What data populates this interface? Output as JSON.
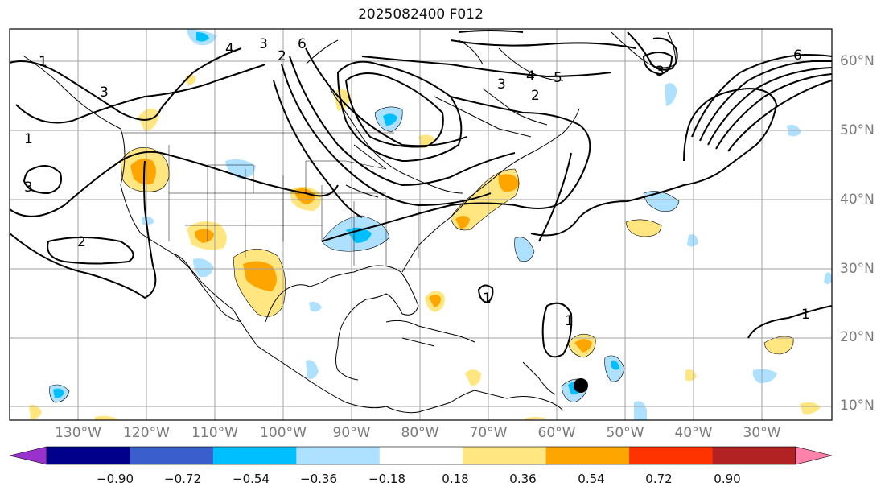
{
  "title": "2025082400 F012",
  "lat_labels": [
    "60°N",
    "50°N",
    "40°N",
    "30°N",
    "20°N",
    "10°N"
  ],
  "lon_labels": [
    "130°W",
    "120°W",
    "110°W",
    "100°W",
    "90°W",
    "80°W",
    "70°W",
    "60°W",
    "50°W",
    "40°W",
    "30°W"
  ],
  "contour_labels": [
    "1",
    "3",
    "4",
    "3",
    "6",
    "2",
    "3",
    "4",
    "5",
    "2",
    "6",
    "3",
    "1",
    "1",
    "2",
    "1",
    "1",
    "3"
  ],
  "colorbar": {
    "ticks": [
      "−0.90",
      "−0.72",
      "−0.54",
      "−0.36",
      "−0.18",
      "0.18",
      "0.36",
      "0.54",
      "0.72",
      "0.90"
    ],
    "colors": [
      "#9932cc",
      "#00008b",
      "#3a5fcd",
      "#00bfff",
      "#aee0ff",
      "#ffffff",
      "#ffe680",
      "#ffa500",
      "#ff3300",
      "#b22222",
      "#ff82ab"
    ]
  },
  "colors": {
    "contour": "#000000",
    "grid": "#a0a0a0",
    "coast": "#000000",
    "positive_light": "#ffe680",
    "positive_mid": "#ffa500",
    "negative_light": "#aee0ff",
    "negative_mid": "#00bfff"
  }
}
